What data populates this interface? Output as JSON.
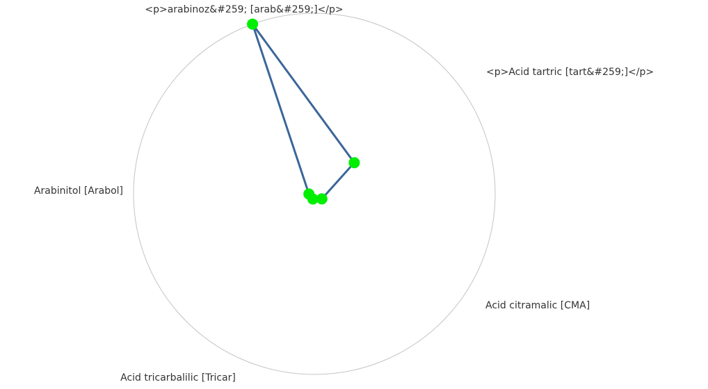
{
  "chart_data": {
    "type": "radar",
    "axes": [
      {
        "name": "<p>arabinoz&#259; [arab&#259;]</p>"
      },
      {
        "name": "<p>Acid tartric [tart&#259;]</p>"
      },
      {
        "name": "Acid citramalic [CMA]"
      },
      {
        "name": "Acid tricarbalilic [Tricar]"
      },
      {
        "name": "Arabinitol [Arabol]"
      }
    ],
    "series": [
      {
        "values": [
          100,
          28,
          5,
          3,
          3
        ]
      }
    ],
    "rmax": 100,
    "grid": false,
    "legend": "none"
  },
  "colors": {
    "line": "#3b6699",
    "marker": "#00ee00",
    "frame": "#c4c4c4",
    "text": "#333333"
  }
}
